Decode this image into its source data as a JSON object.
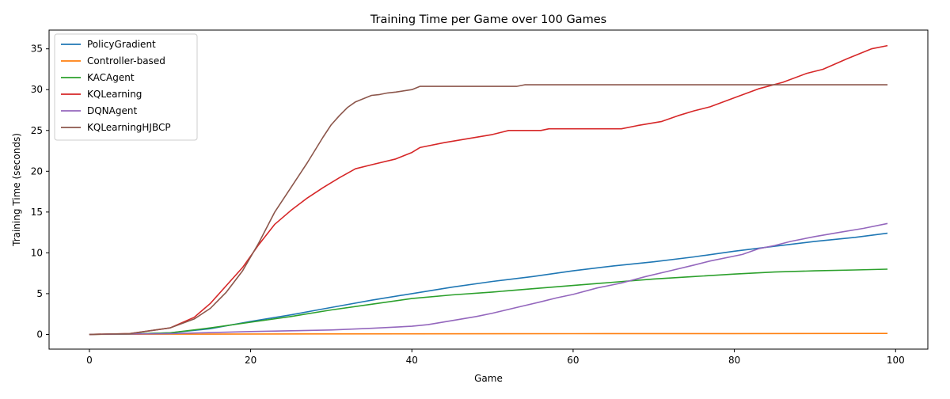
{
  "chart_data": {
    "type": "line",
    "title": "Training Time per Game over 100 Games",
    "xlabel": "Game",
    "ylabel": "Training Time (seconds)",
    "xlim": [
      -5,
      104
    ],
    "ylim": [
      -1.8,
      37.3
    ],
    "xticks": [
      0,
      20,
      40,
      60,
      80,
      100
    ],
    "yticks": [
      0,
      5,
      10,
      15,
      20,
      25,
      30,
      35
    ],
    "grid": false,
    "legend": "top-left",
    "series": [
      {
        "name": "PolicyGradient",
        "color": "#1f77b4",
        "points": [
          [
            0,
            0
          ],
          [
            5,
            0.05
          ],
          [
            10,
            0.2
          ],
          [
            15,
            0.7
          ],
          [
            20,
            1.6
          ],
          [
            25,
            2.4
          ],
          [
            30,
            3.3
          ],
          [
            35,
            4.2
          ],
          [
            40,
            5.0
          ],
          [
            45,
            5.8
          ],
          [
            50,
            6.5
          ],
          [
            55,
            7.1
          ],
          [
            60,
            7.8
          ],
          [
            65,
            8.4
          ],
          [
            70,
            8.9
          ],
          [
            75,
            9.5
          ],
          [
            80,
            10.2
          ],
          [
            85,
            10.8
          ],
          [
            90,
            11.4
          ],
          [
            95,
            11.9
          ],
          [
            99,
            12.4
          ]
        ]
      },
      {
        "name": "Controller-based",
        "color": "#ff7f0e",
        "points": [
          [
            0,
            0
          ],
          [
            10,
            0.03
          ],
          [
            20,
            0.05
          ],
          [
            40,
            0.07
          ],
          [
            60,
            0.09
          ],
          [
            80,
            0.1
          ],
          [
            99,
            0.12
          ]
        ]
      },
      {
        "name": "KACAgent",
        "color": "#2ca02c",
        "points": [
          [
            0,
            0
          ],
          [
            5,
            0.05
          ],
          [
            10,
            0.2
          ],
          [
            15,
            0.8
          ],
          [
            20,
            1.5
          ],
          [
            25,
            2.2
          ],
          [
            30,
            3.0
          ],
          [
            35,
            3.7
          ],
          [
            40,
            4.4
          ],
          [
            45,
            4.85
          ],
          [
            50,
            5.2
          ],
          [
            55,
            5.6
          ],
          [
            60,
            6.0
          ],
          [
            65,
            6.4
          ],
          [
            70,
            6.8
          ],
          [
            75,
            7.1
          ],
          [
            80,
            7.4
          ],
          [
            85,
            7.65
          ],
          [
            90,
            7.8
          ],
          [
            95,
            7.9
          ],
          [
            99,
            8.0
          ]
        ]
      },
      {
        "name": "KQLearning",
        "color": "#d62728",
        "points": [
          [
            0,
            0
          ],
          [
            5,
            0.1
          ],
          [
            10,
            0.8
          ],
          [
            13,
            2.1
          ],
          [
            15,
            3.8
          ],
          [
            17,
            6.0
          ],
          [
            19,
            8.2
          ],
          [
            21,
            11.0
          ],
          [
            23,
            13.5
          ],
          [
            25,
            15.2
          ],
          [
            27,
            16.7
          ],
          [
            29,
            18.0
          ],
          [
            31,
            19.2
          ],
          [
            33,
            20.3
          ],
          [
            35,
            20.8
          ],
          [
            38,
            21.5
          ],
          [
            40,
            22.3
          ],
          [
            41,
            22.9
          ],
          [
            44,
            23.5
          ],
          [
            47,
            24.0
          ],
          [
            50,
            24.5
          ],
          [
            52,
            25.0
          ],
          [
            56,
            25.0
          ],
          [
            57,
            25.2
          ],
          [
            66,
            25.2
          ],
          [
            68,
            25.6
          ],
          [
            71,
            26.1
          ],
          [
            73,
            26.8
          ],
          [
            75,
            27.4
          ],
          [
            77,
            27.9
          ],
          [
            80,
            29.0
          ],
          [
            83,
            30.1
          ],
          [
            86,
            30.9
          ],
          [
            89,
            32.0
          ],
          [
            91,
            32.5
          ],
          [
            94,
            33.8
          ],
          [
            97,
            35.0
          ],
          [
            99,
            35.4
          ]
        ]
      },
      {
        "name": "DQNAgent",
        "color": "#9467bd",
        "points": [
          [
            0,
            0
          ],
          [
            10,
            0.1
          ],
          [
            20,
            0.35
          ],
          [
            25,
            0.45
          ],
          [
            30,
            0.55
          ],
          [
            35,
            0.75
          ],
          [
            40,
            1.0
          ],
          [
            42,
            1.2
          ],
          [
            45,
            1.7
          ],
          [
            48,
            2.2
          ],
          [
            50,
            2.6
          ],
          [
            53,
            3.3
          ],
          [
            56,
            4.0
          ],
          [
            58,
            4.5
          ],
          [
            60,
            4.9
          ],
          [
            63,
            5.7
          ],
          [
            66,
            6.3
          ],
          [
            69,
            7.1
          ],
          [
            72,
            7.8
          ],
          [
            75,
            8.5
          ],
          [
            77,
            9.0
          ],
          [
            81,
            9.8
          ],
          [
            83,
            10.5
          ],
          [
            85,
            10.9
          ],
          [
            87,
            11.4
          ],
          [
            90,
            12.0
          ],
          [
            93,
            12.5
          ],
          [
            96,
            13.0
          ],
          [
            99,
            13.6
          ]
        ]
      },
      {
        "name": "KQLearningHJBCP",
        "color": "#8c564b",
        "points": [
          [
            0,
            0
          ],
          [
            5,
            0.1
          ],
          [
            10,
            0.8
          ],
          [
            13,
            1.9
          ],
          [
            15,
            3.2
          ],
          [
            17,
            5.2
          ],
          [
            19,
            7.8
          ],
          [
            21,
            11.2
          ],
          [
            23,
            15.0
          ],
          [
            25,
            18.0
          ],
          [
            27,
            21.0
          ],
          [
            29,
            24.2
          ],
          [
            30,
            25.7
          ],
          [
            31,
            26.8
          ],
          [
            32,
            27.8
          ],
          [
            33,
            28.5
          ],
          [
            35,
            29.3
          ],
          [
            36,
            29.4
          ],
          [
            37,
            29.6
          ],
          [
            38,
            29.7
          ],
          [
            40,
            30.0
          ],
          [
            41,
            30.4
          ],
          [
            53,
            30.4
          ],
          [
            54,
            30.6
          ],
          [
            99,
            30.6
          ]
        ]
      }
    ]
  }
}
